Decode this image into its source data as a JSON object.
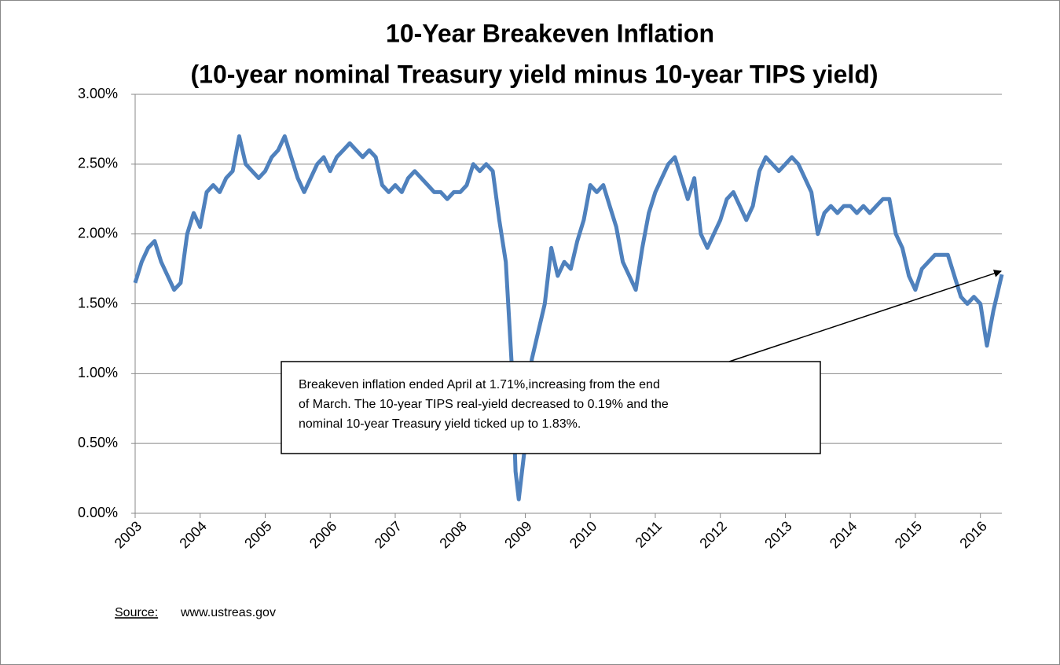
{
  "chart_data": {
    "type": "line",
    "title": [
      "10-Year Breakeven Inflation",
      "(10-year nominal Treasury yield minus 10-year TIPS yield)"
    ],
    "annotation": [
      "Breakeven inflation ended April at 1.71%,increasing from the end",
      "of March.  The 10-year TIPS real-yield decreased to 0.19% and the",
      "nominal 10-year Treasury yield ticked up to 1.83%."
    ],
    "source_label": "Source:",
    "source": "www.ustreas.gov",
    "xlim": [
      2003,
      2016.33
    ],
    "xticks": [
      2003,
      2004,
      2005,
      2006,
      2007,
      2008,
      2009,
      2010,
      2011,
      2012,
      2013,
      2014,
      2015,
      2016
    ],
    "ylim": [
      0,
      3
    ],
    "yticks": [
      {
        "value": 0,
        "label": "0.00%"
      },
      {
        "value": 0.5,
        "label": "0.50%"
      },
      {
        "value": 1,
        "label": "1.00%"
      },
      {
        "value": 1.5,
        "label": "1.50%"
      },
      {
        "value": 2,
        "label": "2.00%"
      },
      {
        "value": 2.5,
        "label": "2.50%"
      },
      {
        "value": 3,
        "label": "3.00%"
      }
    ],
    "grid": true,
    "series": [
      {
        "color": "#4f81bd",
        "x": [
          2003.0,
          2003.1,
          2003.2,
          2003.3,
          2003.4,
          2003.5,
          2003.6,
          2003.7,
          2003.8,
          2003.9,
          2004.0,
          2004.1,
          2004.2,
          2004.3,
          2004.4,
          2004.5,
          2004.6,
          2004.7,
          2004.8,
          2004.9,
          2005.0,
          2005.1,
          2005.2,
          2005.3,
          2005.4,
          2005.5,
          2005.6,
          2005.7,
          2005.8,
          2005.9,
          2006.0,
          2006.1,
          2006.2,
          2006.3,
          2006.4,
          2006.5,
          2006.6,
          2006.7,
          2006.8,
          2006.9,
          2007.0,
          2007.1,
          2007.2,
          2007.3,
          2007.4,
          2007.5,
          2007.6,
          2007.7,
          2007.8,
          2007.9,
          2008.0,
          2008.1,
          2008.2,
          2008.3,
          2008.4,
          2008.5,
          2008.6,
          2008.7,
          2008.8,
          2008.85,
          2008.9,
          2009.0,
          2009.1,
          2009.2,
          2009.3,
          2009.4,
          2009.5,
          2009.6,
          2009.7,
          2009.8,
          2009.9,
          2010.0,
          2010.1,
          2010.2,
          2010.3,
          2010.4,
          2010.5,
          2010.6,
          2010.7,
          2010.8,
          2010.9,
          2011.0,
          2011.1,
          2011.2,
          2011.3,
          2011.4,
          2011.5,
          2011.6,
          2011.7,
          2011.8,
          2011.9,
          2012.0,
          2012.1,
          2012.2,
          2012.3,
          2012.4,
          2012.5,
          2012.6,
          2012.7,
          2012.8,
          2012.9,
          2013.0,
          2013.1,
          2013.2,
          2013.3,
          2013.4,
          2013.5,
          2013.6,
          2013.7,
          2013.8,
          2013.9,
          2014.0,
          2014.1,
          2014.2,
          2014.3,
          2014.4,
          2014.5,
          2014.6,
          2014.7,
          2014.8,
          2014.9,
          2015.0,
          2015.1,
          2015.2,
          2015.3,
          2015.4,
          2015.5,
          2015.6,
          2015.7,
          2015.8,
          2015.9,
          2016.0,
          2016.1,
          2016.2,
          2016.33
        ],
        "values": [
          1.65,
          1.8,
          1.9,
          1.95,
          1.8,
          1.7,
          1.6,
          1.65,
          2.0,
          2.15,
          2.05,
          2.3,
          2.35,
          2.3,
          2.4,
          2.45,
          2.7,
          2.5,
          2.45,
          2.4,
          2.45,
          2.55,
          2.6,
          2.7,
          2.55,
          2.4,
          2.3,
          2.4,
          2.5,
          2.55,
          2.45,
          2.55,
          2.6,
          2.65,
          2.6,
          2.55,
          2.6,
          2.55,
          2.35,
          2.3,
          2.35,
          2.3,
          2.4,
          2.45,
          2.4,
          2.35,
          2.3,
          2.3,
          2.25,
          2.3,
          2.3,
          2.35,
          2.5,
          2.45,
          2.5,
          2.45,
          2.1,
          1.8,
          1.0,
          0.3,
          0.1,
          0.5,
          1.1,
          1.3,
          1.5,
          1.9,
          1.7,
          1.8,
          1.75,
          1.95,
          2.1,
          2.35,
          2.3,
          2.35,
          2.2,
          2.05,
          1.8,
          1.7,
          1.6,
          1.9,
          2.15,
          2.3,
          2.4,
          2.5,
          2.55,
          2.4,
          2.25,
          2.4,
          2.0,
          1.9,
          2.0,
          2.1,
          2.25,
          2.3,
          2.2,
          2.1,
          2.2,
          2.45,
          2.55,
          2.5,
          2.45,
          2.5,
          2.55,
          2.5,
          2.4,
          2.3,
          2.0,
          2.15,
          2.2,
          2.15,
          2.2,
          2.2,
          2.15,
          2.2,
          2.15,
          2.2,
          2.25,
          2.25,
          2.0,
          1.9,
          1.7,
          1.6,
          1.75,
          1.8,
          1.85,
          1.85,
          1.85,
          1.7,
          1.55,
          1.5,
          1.55,
          1.5,
          1.2,
          1.45,
          1.71
        ]
      }
    ]
  }
}
